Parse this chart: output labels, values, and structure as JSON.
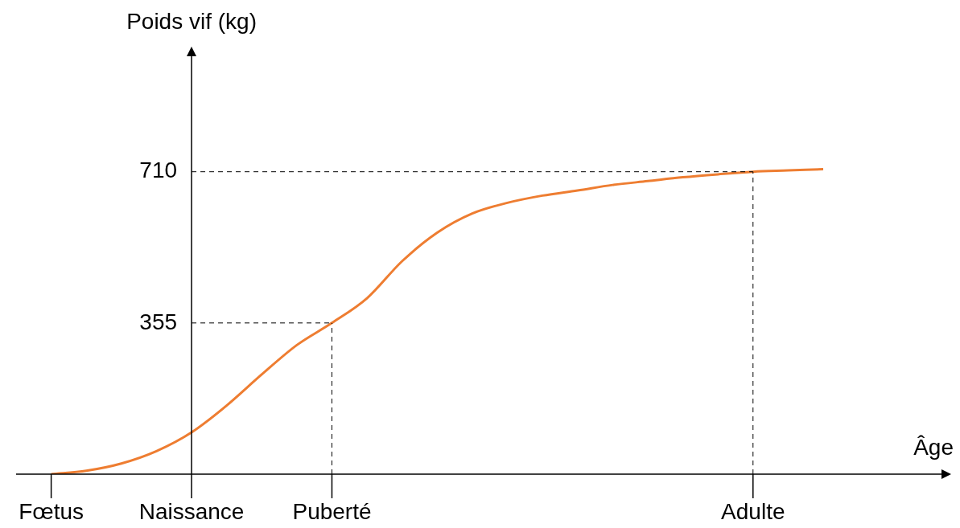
{
  "chart_data": {
    "type": "line",
    "xlabel": "Âge",
    "ylabel": "Poids vif (kg)",
    "categories": [
      "Fœtus",
      null,
      null,
      null,
      "Naissance",
      null,
      null,
      null,
      "Puberté",
      null,
      null,
      null,
      null,
      null,
      null,
      null,
      null,
      null,
      null,
      null,
      "Adulte",
      null,
      null
    ],
    "series": [
      {
        "color": "#ee7d31",
        "values": [
          0,
          8,
          25,
          54,
          98,
          161,
          234,
          303,
          355,
          413,
          500,
          567,
          612,
          637,
          654,
          666,
          679,
          688,
          697,
          704,
          710,
          713,
          716
        ]
      }
    ],
    "ylim": [
      0,
      1000
    ],
    "yticks": [
      355,
      710
    ],
    "ref_lines": [
      {
        "axis": "y",
        "value": 355,
        "line_style": "dashed"
      },
      {
        "axis": "y",
        "value": 710,
        "line_style": "dashed"
      },
      {
        "axis": "x",
        "value": "Puberté",
        "line_style": "dashed"
      },
      {
        "axis": "x",
        "value": "Adulte",
        "line_style": "dashed"
      }
    ],
    "legend": false,
    "marker": "none",
    "line_style": "solid"
  }
}
